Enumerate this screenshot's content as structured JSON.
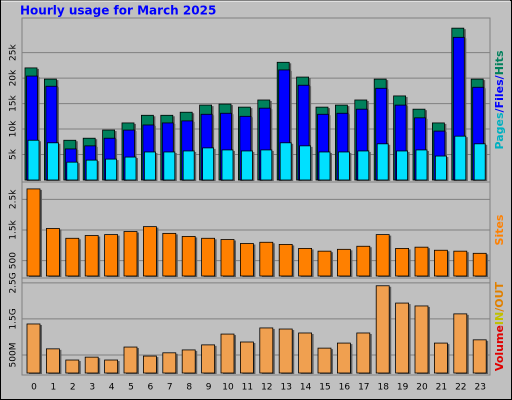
{
  "chart_data": [
    {
      "type": "bar",
      "title": "Hourly usage for March 2025",
      "legend_parts": [
        {
          "text": "Pages",
          "color": "#00b0c0"
        },
        {
          "text": "/",
          "color": "#0000ff"
        },
        {
          "text": "Files",
          "color": "#0000ff"
        },
        {
          "text": "/",
          "color": "#0000ff"
        },
        {
          "text": "Hits",
          "color": "#00805c"
        }
      ],
      "series": [
        {
          "name": "Hits",
          "color": "#00805c",
          "values": [
            22000,
            19800,
            7800,
            8200,
            9800,
            11200,
            12700,
            12700,
            13300,
            14700,
            14900,
            14300,
            15700,
            23100,
            20200,
            14300,
            14700,
            15700,
            19800,
            16500,
            13900,
            11200,
            29800,
            19800
          ]
        },
        {
          "name": "Files",
          "color": "#0000ff",
          "values": [
            20400,
            18400,
            6100,
            6700,
            8200,
            9800,
            10800,
            11200,
            11600,
            12900,
            13100,
            12500,
            14100,
            21600,
            18600,
            12900,
            13100,
            13900,
            18000,
            14700,
            12200,
            9600,
            28000,
            18200
          ]
        },
        {
          "name": "Pages",
          "color": "#00e0ff",
          "values": [
            7800,
            7300,
            3500,
            3900,
            4100,
            4500,
            5500,
            5500,
            5700,
            6300,
            5900,
            5700,
            5900,
            7300,
            6700,
            5500,
            5500,
            5700,
            7100,
            5700,
            5900,
            4700,
            8600,
            7100
          ]
        }
      ],
      "ylim": [
        0,
        31400
      ],
      "yticks": [
        {
          "value": 5000,
          "label": "5k"
        },
        {
          "value": 10000,
          "label": "10k"
        },
        {
          "value": 15000,
          "label": "15k"
        },
        {
          "value": 20000,
          "label": "20k"
        },
        {
          "value": 25000,
          "label": "25k"
        }
      ],
      "grid": true
    },
    {
      "type": "bar",
      "legend_parts": [
        {
          "text": "Sites",
          "color": "#ff8000"
        }
      ],
      "series": [
        {
          "name": "Sites",
          "color": "#ff8000",
          "values": [
            2840,
            1550,
            1230,
            1320,
            1350,
            1450,
            1610,
            1390,
            1290,
            1230,
            1190,
            1060,
            1100,
            1030,
            900,
            810,
            870,
            970,
            1350,
            900,
            940,
            840,
            810,
            740
          ]
        }
      ],
      "ylim": [
        0,
        3000
      ],
      "yticks": [
        500,
        {
          "value": 1500,
          "label": "1.5k"
        },
        {
          "value": 2500,
          "label": "2.5k"
        }
      ],
      "grid": true
    },
    {
      "type": "bar",
      "legend_parts": [
        {
          "text": "Volume",
          "color": "#e00000"
        },
        {
          "text": "IN",
          "color": "#c0c000"
        },
        {
          "text": "/",
          "color": "#e08000"
        },
        {
          "text": "OUT",
          "color": "#e08000"
        }
      ],
      "categories": [
        "0",
        "1",
        "2",
        "3",
        "4",
        "5",
        "6",
        "7",
        "8",
        "9",
        "10",
        "11",
        "12",
        "13",
        "14",
        "15",
        "16",
        "17",
        "18",
        "19",
        "20",
        "21",
        "22",
        "23"
      ],
      "series": [
        {
          "name": "Volume",
          "color": "#f0a050",
          "values": [
            1.36,
            0.67,
            0.36,
            0.44,
            0.36,
            0.72,
            0.47,
            0.56,
            0.64,
            0.78,
            1.08,
            0.86,
            1.25,
            1.22,
            1.11,
            0.69,
            0.83,
            1.11,
            2.42,
            1.94,
            1.86,
            0.83,
            1.64,
            0.92
          ]
        }
      ],
      "ylim": [
        0,
        2.58
      ],
      "yticks": [
        {
          "value": 0.5,
          "label": "500M"
        },
        {
          "value": 1.5,
          "label": "1.5G"
        },
        {
          "value": 2.5,
          "label": "2.5G"
        }
      ],
      "grid": true
    }
  ]
}
